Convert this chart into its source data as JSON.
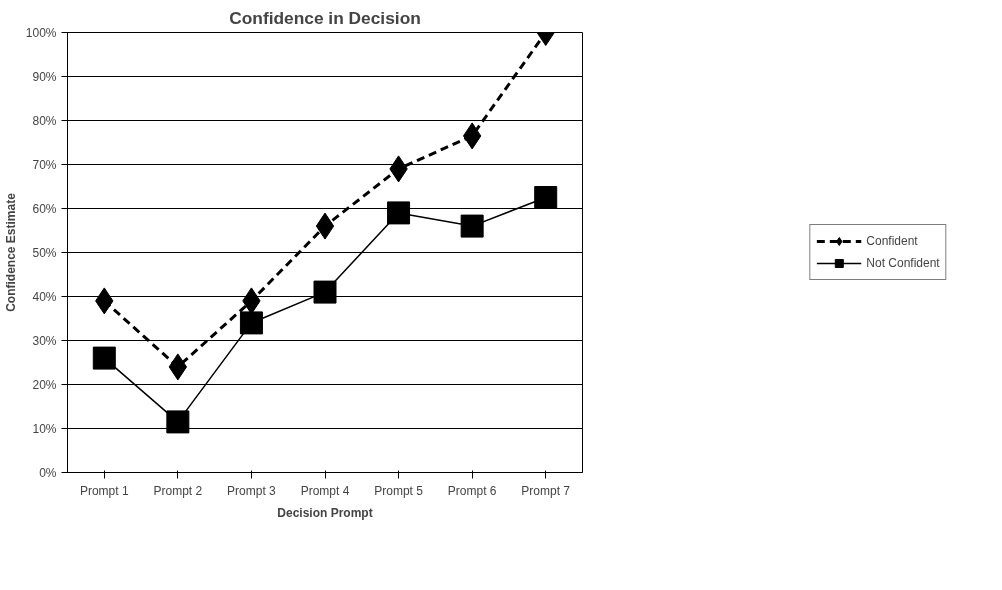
{
  "chart_data": {
    "type": "line",
    "title": "Confidence in Decision",
    "xlabel": "Decision Prompt",
    "ylabel": "Confidence Estimate",
    "categories": [
      "Prompt 1",
      "Prompt 2",
      "Prompt 3",
      "Prompt 4",
      "Prompt 5",
      "Prompt 6",
      "Prompt 7"
    ],
    "series": [
      {
        "name": "Confident",
        "color": "#000000",
        "marker": "diamond",
        "line_style": "dashed",
        "values": [
          39,
          24,
          39,
          56,
          69,
          76.5,
          100
        ]
      },
      {
        "name": "Not Confident",
        "color": "#000000",
        "marker": "square",
        "line_style": "solid",
        "values": [
          26,
          11.5,
          34,
          41,
          59,
          56,
          62.5
        ]
      }
    ],
    "ylim": [
      0,
      100
    ],
    "yticks": [
      {
        "value": 0,
        "label": "0%"
      },
      {
        "value": 10,
        "label": "10%"
      },
      {
        "value": 20,
        "label": "20%"
      },
      {
        "value": 30,
        "label": "30%"
      },
      {
        "value": 40,
        "label": "40%"
      },
      {
        "value": 50,
        "label": "50%"
      },
      {
        "value": 60,
        "label": "60%"
      },
      {
        "value": 70,
        "label": "70%"
      },
      {
        "value": 80,
        "label": "80%"
      },
      {
        "value": 90,
        "label": "90%"
      },
      {
        "value": 100,
        "label": "100%"
      }
    ],
    "grid": "y",
    "legend": "right"
  }
}
